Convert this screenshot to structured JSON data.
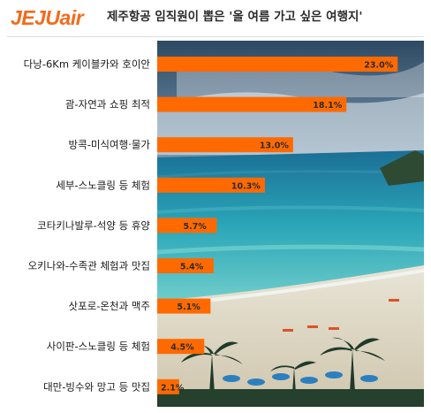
{
  "header": {
    "logo_part1": "JEJU",
    "logo_part2": "air",
    "title": "제주항공 임직원이 뽑은 '올 여름 가고 싶은 여행지'"
  },
  "colors": {
    "bar": "#ff6a00",
    "brand": "#f26b1d",
    "label_text": "#1a1a1a",
    "value_text": "#2b2b2b"
  },
  "chart_data": {
    "type": "bar",
    "orientation": "horizontal",
    "title": "제주항공 임직원이 뽑은 '올 여름 가고 싶은 여행지'",
    "categories": [
      "다낭-6Km 케이블카와 호이안",
      "괌-자연과 쇼핑 최적",
      "방콕-미식여행·물가",
      "세부-스노클링 등 체험",
      "코타키나발루-석양 등 휴양",
      "오키나와-수족관 체험과 맛집",
      "삿포로-온천과 맥주",
      "사이판-스노클링 등 체험",
      "대만-빙수와 망고 등 맛집"
    ],
    "values": [
      23.0,
      18.1,
      13.0,
      10.3,
      5.7,
      5.4,
      5.1,
      4.5,
      2.1
    ],
    "value_labels": [
      "23.0%",
      "18.1%",
      "13.0%",
      "10.3%",
      "5.7%",
      "5.4%",
      "5.1%",
      "4.5%",
      "2.1%"
    ],
    "unit": "%",
    "xlim": [
      0,
      23.4
    ],
    "background": "beach photograph (ocean, sand, palm trees)"
  }
}
